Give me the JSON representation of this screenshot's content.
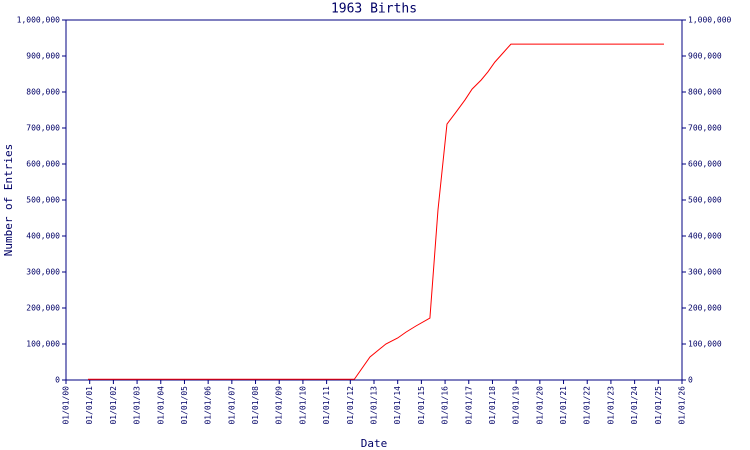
{
  "chart_data": {
    "type": "line",
    "title": "1963 Births",
    "x_label": "Date",
    "y_label": "Number of Entries",
    "color": "#ff0000",
    "axis_color": "#000080",
    "grid": false,
    "x": [
      0.93,
      12.17,
      12.83,
      13.5,
      14.0,
      14.35,
      14.77,
      15.36,
      15.7,
      16.08,
      16.46,
      16.84,
      17.14,
      17.52,
      17.81,
      18.1,
      18.44,
      18.78,
      25.24
    ],
    "values": [
      2000,
      2000,
      63900,
      100000,
      116700,
      133000,
      150000,
      172000,
      472000,
      711000,
      744000,
      778000,
      808000,
      833000,
      856000,
      883000,
      908000,
      933000,
      933000
    ],
    "xlim": [
      0,
      26
    ],
    "xticks": [
      {
        "value": 0,
        "label": "01/01/00"
      },
      {
        "value": 1,
        "label": "01/01/01"
      },
      {
        "value": 2,
        "label": "01/01/02"
      },
      {
        "value": 3,
        "label": "01/01/03"
      },
      {
        "value": 4,
        "label": "01/01/04"
      },
      {
        "value": 5,
        "label": "01/01/05"
      },
      {
        "value": 6,
        "label": "01/01/06"
      },
      {
        "value": 7,
        "label": "01/01/07"
      },
      {
        "value": 8,
        "label": "01/01/08"
      },
      {
        "value": 9,
        "label": "01/01/09"
      },
      {
        "value": 10,
        "label": "01/01/10"
      },
      {
        "value": 11,
        "label": "01/01/11"
      },
      {
        "value": 12,
        "label": "01/01/12"
      },
      {
        "value": 13,
        "label": "01/01/13"
      },
      {
        "value": 14,
        "label": "01/01/14"
      },
      {
        "value": 15,
        "label": "01/01/15"
      },
      {
        "value": 16,
        "label": "01/01/16"
      },
      {
        "value": 17,
        "label": "01/01/17"
      },
      {
        "value": 18,
        "label": "01/01/18"
      },
      {
        "value": 19,
        "label": "01/01/19"
      },
      {
        "value": 20,
        "label": "01/01/20"
      },
      {
        "value": 21,
        "label": "01/01/21"
      },
      {
        "value": 22,
        "label": "01/01/22"
      },
      {
        "value": 23,
        "label": "01/01/23"
      },
      {
        "value": 24,
        "label": "01/01/24"
      },
      {
        "value": 25,
        "label": "01/01/25"
      },
      {
        "value": 26,
        "label": "01/01/26"
      }
    ],
    "ylim": [
      0,
      1000000
    ],
    "yticks": [
      0,
      {
        "value": 100000,
        "label": "100,000"
      },
      {
        "value": 200000,
        "label": "200,000"
      },
      {
        "value": 300000,
        "label": "300,000"
      },
      {
        "value": 400000,
        "label": "400,000"
      },
      {
        "value": 500000,
        "label": "500,000"
      },
      {
        "value": 600000,
        "label": "600,000"
      },
      {
        "value": 700000,
        "label": "700,000"
      },
      {
        "value": 800000,
        "label": "800,000"
      },
      {
        "value": 900000,
        "label": "900,000"
      },
      {
        "value": 1000000,
        "label": "1,000,000"
      }
    ],
    "y2lim": [
      0,
      1000000
    ],
    "y2ticks": [
      0,
      {
        "value": 100000,
        "label": "100,000"
      },
      {
        "value": 200000,
        "label": "200,000"
      },
      {
        "value": 300000,
        "label": "300,000"
      },
      {
        "value": 400000,
        "label": "400,000"
      },
      {
        "value": 500000,
        "label": "500,000"
      },
      {
        "value": 600000,
        "label": "600,000"
      },
      {
        "value": 700000,
        "label": "700,000"
      },
      {
        "value": 800000,
        "label": "800,000"
      },
      {
        "value": 900000,
        "label": "900,000"
      },
      {
        "value": 1000000,
        "label": "1,000,000"
      }
    ]
  }
}
